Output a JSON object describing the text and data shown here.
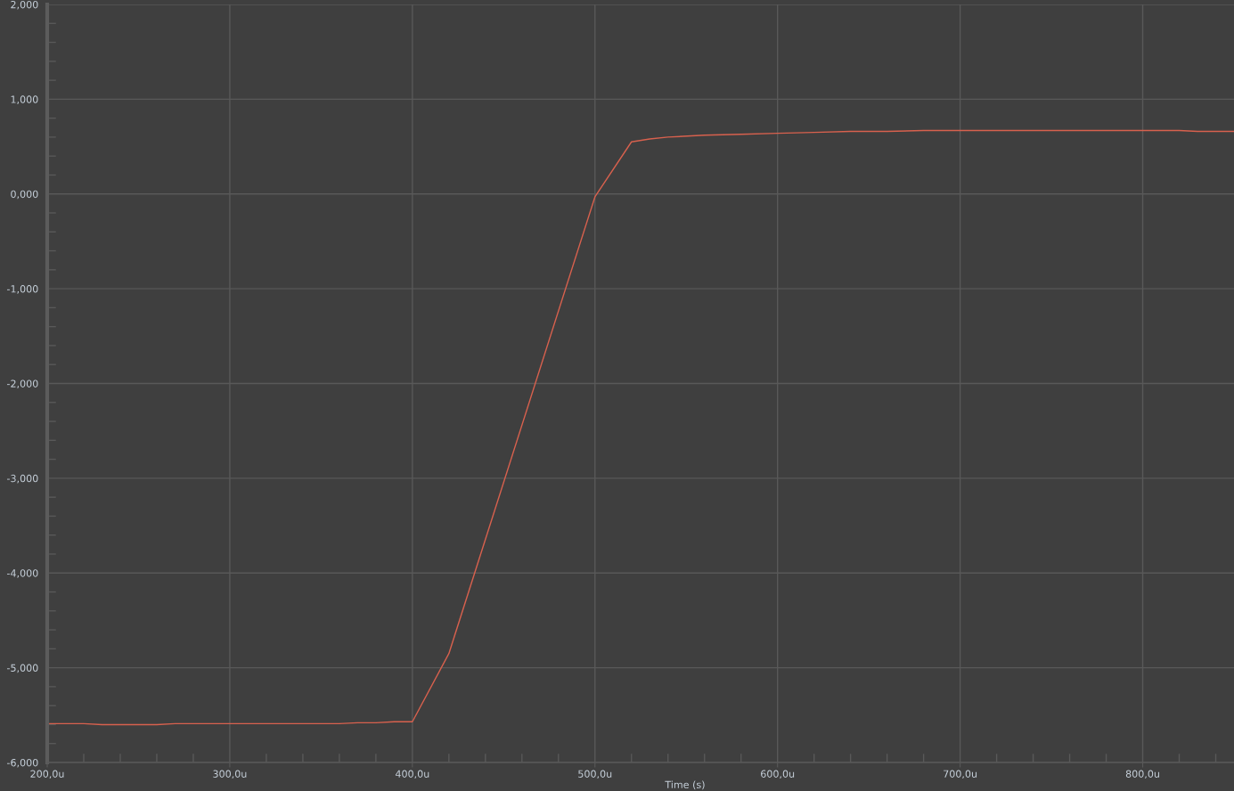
{
  "chart_data": {
    "type": "line",
    "xlabel": "Time (s)",
    "x": [
      200,
      220,
      230,
      260,
      270,
      360,
      370,
      380,
      390,
      400,
      420,
      500,
      520,
      530,
      540,
      560,
      580,
      600,
      620,
      640,
      660,
      680,
      700,
      750,
      800,
      820,
      830,
      850
    ],
    "series": [
      {
        "color": "#d8614e",
        "values": [
          -5.59,
          -5.59,
          -5.6,
          -5.6,
          -5.59,
          -5.59,
          -5.58,
          -5.58,
          -5.57,
          -5.57,
          -4.85,
          -0.03,
          0.55,
          0.58,
          0.6,
          0.62,
          0.63,
          0.64,
          0.65,
          0.66,
          0.66,
          0.67,
          0.67,
          0.67,
          0.67,
          0.67,
          0.66,
          0.66
        ]
      }
    ],
    "xlim": [
      200,
      850
    ],
    "ylim": [
      -6,
      2
    ],
    "xticks": [
      {
        "value": 200,
        "label": "200,0u"
      },
      {
        "value": 300,
        "label": "300,0u"
      },
      {
        "value": 400,
        "label": "400,0u"
      },
      {
        "value": 500,
        "label": "500,0u"
      },
      {
        "value": 600,
        "label": "600,0u"
      },
      {
        "value": 700,
        "label": "700,0u"
      },
      {
        "value": 800,
        "label": "800,0u"
      }
    ],
    "yticks": [
      {
        "value": -6,
        "label": "-6,000"
      },
      {
        "value": -5,
        "label": "-5,000"
      },
      {
        "value": -4,
        "label": "-4,000"
      },
      {
        "value": -3,
        "label": "-3,000"
      },
      {
        "value": -2,
        "label": "-2,000"
      },
      {
        "value": -1,
        "label": "-1,000"
      },
      {
        "value": 0,
        "label": "0,000"
      },
      {
        "value": 1,
        "label": "1,000"
      },
      {
        "value": 2,
        "label": "2,000"
      }
    ],
    "grid": true,
    "marker": "none",
    "line_style": "solid"
  }
}
